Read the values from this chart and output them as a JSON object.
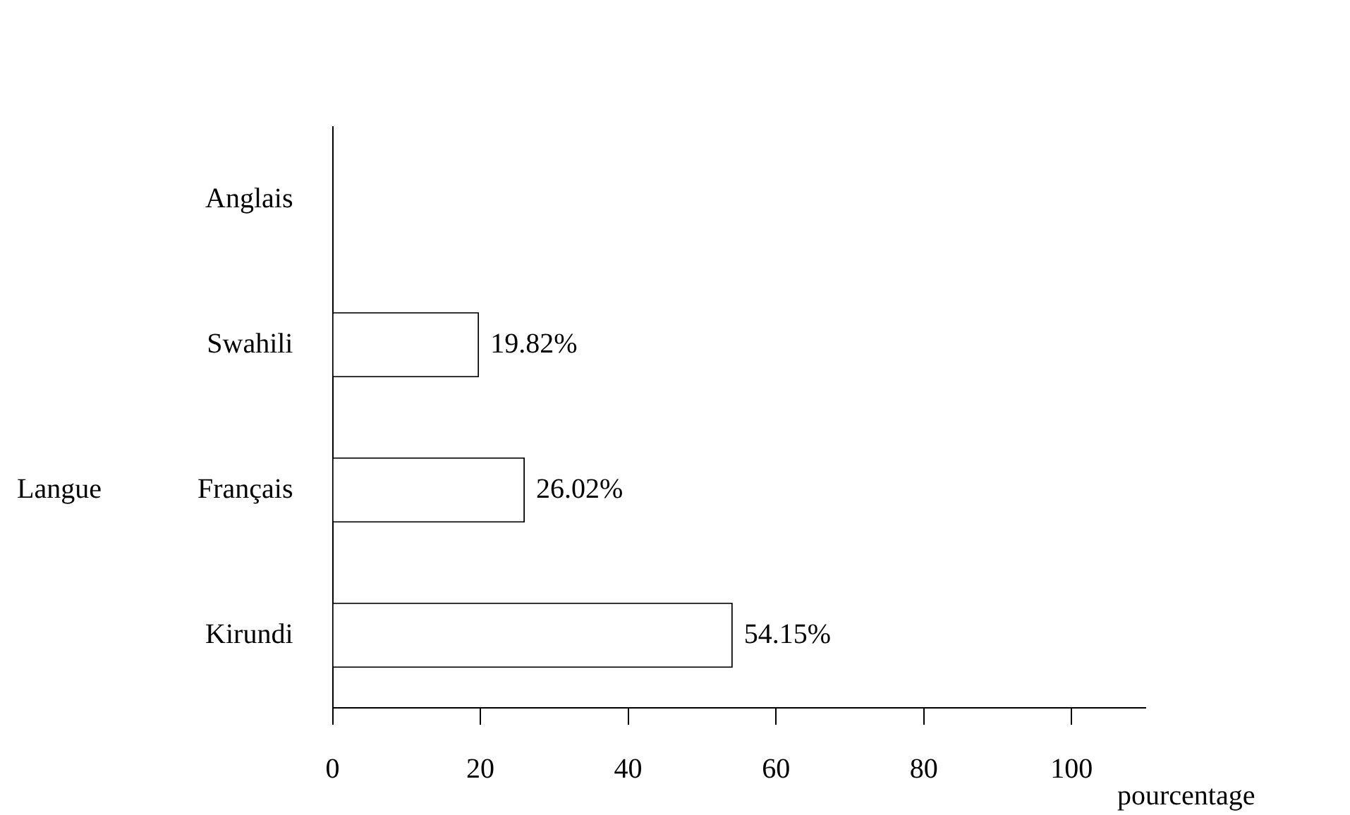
{
  "chart_data": {
    "type": "bar",
    "orientation": "horizontal",
    "xlabel": "pourcentage",
    "ylabel": "Langue",
    "categories": [
      "Anglais",
      "Swahili",
      "Français",
      "Kirundi"
    ],
    "values": [
      0,
      19.82,
      26.02,
      54.15
    ],
    "value_labels": [
      null,
      "19.82%",
      "26.02%",
      "54.15%"
    ],
    "color": "#ffffff",
    "xlim": [
      0,
      110
    ],
    "xticks": [
      0,
      20,
      40,
      60,
      80,
      100
    ],
    "legend": false
  }
}
